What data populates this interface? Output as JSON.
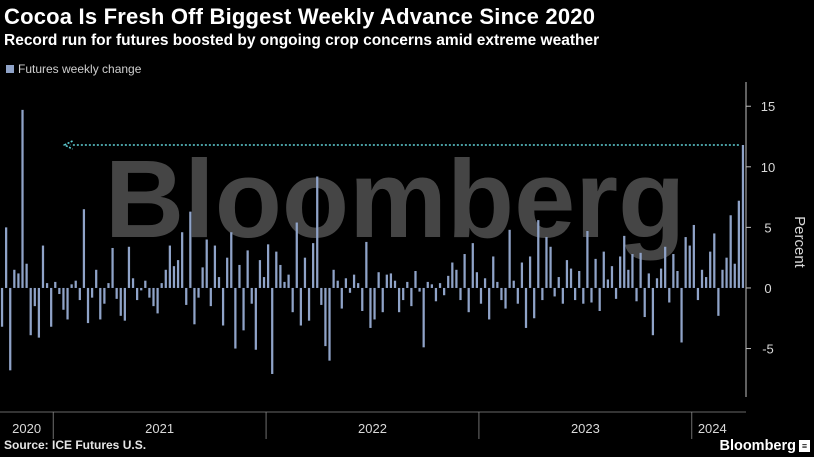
{
  "header": {
    "title": "Cocoa Is Fresh Off Biggest Weekly Advance Since 2020",
    "subtitle": "Record run for futures boosted by ongoing crop concerns amid extreme weather"
  },
  "footer": {
    "source": "Source: ICE Futures U.S.",
    "brand": "Bloomberg",
    "brand_icon": "≡"
  },
  "colors": {
    "background": "#000000",
    "bar": "#8fa3c8",
    "arrow": "#5fd0d6",
    "grid": "#2a2a2a",
    "watermark": "#9a9a9a"
  },
  "watermark": "Bloomberg",
  "chart_data": {
    "type": "bar",
    "title": "Cocoa Is Fresh Off Biggest Weekly Advance Since 2020",
    "subtitle": "Record run for futures boosted by ongoing crop concerns amid extreme weather",
    "ylabel": "Percent",
    "xlabel": "",
    "ylim": [
      -9,
      17
    ],
    "yticks": [
      15,
      10,
      5,
      0,
      -5
    ],
    "grid": false,
    "legend_position": "top-left",
    "x_period_labels": [
      "2020",
      "2021",
      "2022",
      "2023",
      "2024"
    ],
    "x_period_weeks": [
      [
        0,
        13
      ],
      [
        13,
        65
      ],
      [
        65,
        117
      ],
      [
        117,
        169
      ],
      [
        169,
        179
      ]
    ],
    "annotation": "arrow from the latest bar back to the 2020 peak",
    "series": [
      {
        "name": "Futures weekly change",
        "values": [
          -3.2,
          5.0,
          -6.8,
          1.5,
          1.2,
          14.7,
          2.0,
          -3.9,
          -1.5,
          -4.1,
          3.5,
          0.4,
          -3.2,
          0.5,
          -0.5,
          -1.8,
          -2.6,
          0.3,
          0.6,
          -1.0,
          6.5,
          -2.9,
          -0.8,
          1.5,
          -2.6,
          -1.3,
          0.4,
          3.3,
          -0.9,
          -2.3,
          -2.7,
          3.4,
          0.8,
          -1.0,
          -0.2,
          0.6,
          -0.8,
          -1.5,
          -2.1,
          0.4,
          1.5,
          3.5,
          1.8,
          2.3,
          4.6,
          -1.4,
          6.3,
          -3.0,
          -0.8,
          1.7,
          4.0,
          -1.5,
          3.5,
          0.9,
          -3.1,
          2.5,
          4.6,
          -5.0,
          1.9,
          -3.5,
          3.1,
          -1.3,
          -5.1,
          2.3,
          0.9,
          3.6,
          -7.1,
          3.0,
          1.9,
          0.5,
          1.1,
          -2.0,
          5.4,
          -3.1,
          2.5,
          -2.7,
          3.7,
          9.2,
          -1.4,
          -4.8,
          -6.0,
          1.5,
          0.6,
          -1.7,
          0.8,
          -0.4,
          1.1,
          0.4,
          -1.9,
          3.8,
          -3.3,
          -2.6,
          1.3,
          -2.0,
          1.1,
          1.2,
          0.6,
          -2.0,
          -1.0,
          0.5,
          -1.5,
          1.4,
          -0.3,
          -4.9,
          0.5,
          0.3,
          -1.1,
          0.4,
          -0.6,
          1.0,
          2.1,
          1.5,
          -1.0,
          2.8,
          -2.0,
          3.7,
          1.3,
          -1.3,
          0.8,
          -2.6,
          2.6,
          0.5,
          -1.0,
          -1.7,
          4.8,
          0.6,
          -1.3,
          2.1,
          -3.3,
          2.6,
          -2.5,
          5.6,
          -1.0,
          4.2,
          3.4,
          -0.7,
          0.9,
          -1.3,
          2.3,
          1.6,
          -1.0,
          1.4,
          -1.3,
          4.7,
          -1.2,
          2.4,
          -1.9,
          3.0,
          0.7,
          1.8,
          -0.9,
          2.6,
          4.3,
          1.5,
          2.8,
          -1.1,
          2.9,
          -2.4,
          1.2,
          -3.9,
          0.8,
          1.6,
          3.4,
          -1.2,
          2.8,
          1.4,
          -4.5,
          4.2,
          3.5,
          5.2,
          -1.0,
          1.5,
          0.9,
          3.0,
          4.5,
          -2.3,
          1.5,
          2.5,
          6.0,
          2.0,
          7.2,
          11.8
        ]
      }
    ]
  }
}
